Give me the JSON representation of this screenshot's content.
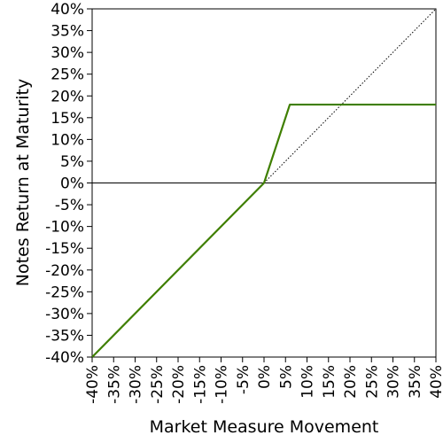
{
  "chart_data": {
    "type": "line",
    "title": "",
    "xlabel": "Market Measure Movement",
    "ylabel": "Notes Return at Maturity",
    "xlim": [
      -40,
      40
    ],
    "ylim": [
      -40,
      40
    ],
    "x_ticks": [
      "-40%",
      "-35%",
      "-30%",
      "-25%",
      "-20%",
      "-15%",
      "-10%",
      "-5%",
      "0%",
      "5%",
      "10%",
      "15%",
      "20%",
      "25%",
      "30%",
      "35%",
      "40%"
    ],
    "y_ticks": [
      "40%",
      "35%",
      "30%",
      "25%",
      "20%",
      "15%",
      "10%",
      "5%",
      "0%",
      "-5%",
      "-10%",
      "-15%",
      "-20%",
      "-25%",
      "-30%",
      "-35%",
      "-40%"
    ],
    "grid": false,
    "legend": "none",
    "series": [
      {
        "style": "solid",
        "color": "#3f7f00",
        "x": [
          -40,
          0,
          6,
          40
        ],
        "y": [
          -40,
          0,
          18,
          18
        ]
      },
      {
        "style": "dotted",
        "color": "#000000",
        "x": [
          0,
          40
        ],
        "y": [
          0,
          40
        ]
      }
    ],
    "reference_lines": [
      {
        "orientation": "horizontal",
        "y": 0,
        "color": "#000000"
      }
    ]
  }
}
